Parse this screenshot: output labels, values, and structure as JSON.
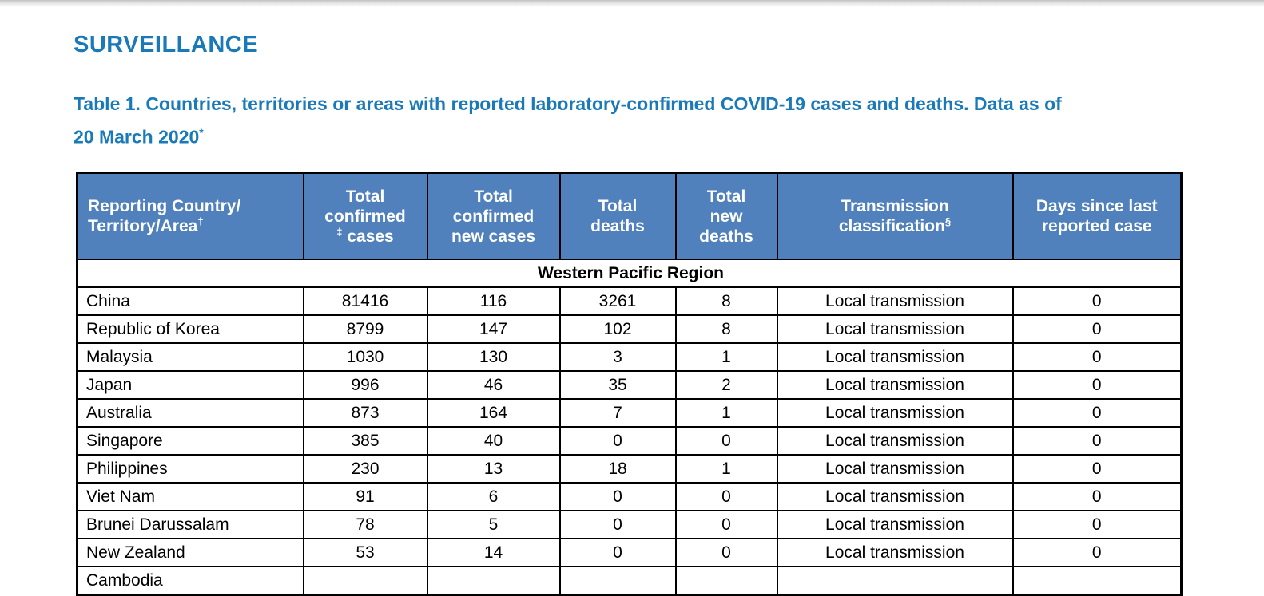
{
  "page": {
    "title": "SURVEILLANCE",
    "caption_line1": "Table 1. Countries, territories or areas with reported laboratory-confirmed COVID-19 cases and deaths. Data as of",
    "caption_line2": "20 March 2020",
    "caption_sup": "*"
  },
  "colors": {
    "heading_blue": "#1a79b8",
    "header_fill_blue": "#5181bc",
    "region_band_gray": "#a7a7a7",
    "border_black": "#000000"
  },
  "table": {
    "headers": [
      {
        "align": "left",
        "lines": [
          [
            {
              "t": "Reporting Country/"
            }
          ],
          [
            {
              "t": "Territory/Area"
            },
            {
              "t": "†",
              "sup": true
            }
          ]
        ]
      },
      {
        "lines": [
          [
            {
              "t": "Total"
            }
          ],
          [
            {
              "t": "confirmed"
            }
          ],
          [
            {
              "t": "‡",
              "sup": true
            },
            {
              "t": " cases"
            }
          ]
        ]
      },
      {
        "lines": [
          [
            {
              "t": "Total"
            }
          ],
          [
            {
              "t": "confirmed"
            }
          ],
          [
            {
              "t": "new cases"
            }
          ]
        ]
      },
      {
        "lines": [
          [
            {
              "t": "Total"
            }
          ],
          [
            {
              "t": "deaths"
            }
          ]
        ]
      },
      {
        "lines": [
          [
            {
              "t": "Total"
            }
          ],
          [
            {
              "t": "new"
            }
          ],
          [
            {
              "t": "deaths"
            }
          ]
        ]
      },
      {
        "lines": [
          [
            {
              "t": "Transmission"
            }
          ],
          [
            {
              "t": "classification"
            },
            {
              "t": "§",
              "sup": true
            }
          ]
        ]
      },
      {
        "lines": [
          [
            {
              "t": "Days since last"
            }
          ],
          [
            {
              "t": "reported case"
            }
          ]
        ]
      }
    ],
    "region_label": "Western Pacific Region",
    "rows": [
      [
        "China",
        "81416",
        "116",
        "3261",
        "8",
        "Local transmission",
        "0"
      ],
      [
        "Republic of Korea",
        "8799",
        "147",
        "102",
        "8",
        "Local transmission",
        "0"
      ],
      [
        "Malaysia",
        "1030",
        "130",
        "3",
        "1",
        "Local transmission",
        "0"
      ],
      [
        "Japan",
        "996",
        "46",
        "35",
        "2",
        "Local transmission",
        "0"
      ],
      [
        "Australia",
        "873",
        "164",
        "7",
        "1",
        "Local transmission",
        "0"
      ],
      [
        "Singapore",
        "385",
        "40",
        "0",
        "0",
        "Local transmission",
        "0"
      ],
      [
        "Philippines",
        "230",
        "13",
        "18",
        "1",
        "Local transmission",
        "0"
      ],
      [
        "Viet Nam",
        "91",
        "6",
        "0",
        "0",
        "Local transmission",
        "0"
      ],
      [
        "Brunei Darussalam",
        "78",
        "5",
        "0",
        "0",
        "Local transmission",
        "0"
      ],
      [
        "New Zealand",
        "53",
        "14",
        "0",
        "0",
        "Local transmission",
        "0"
      ]
    ],
    "partial_row": [
      "Cambodia",
      "",
      "",
      "",
      "",
      "",
      ""
    ]
  }
}
